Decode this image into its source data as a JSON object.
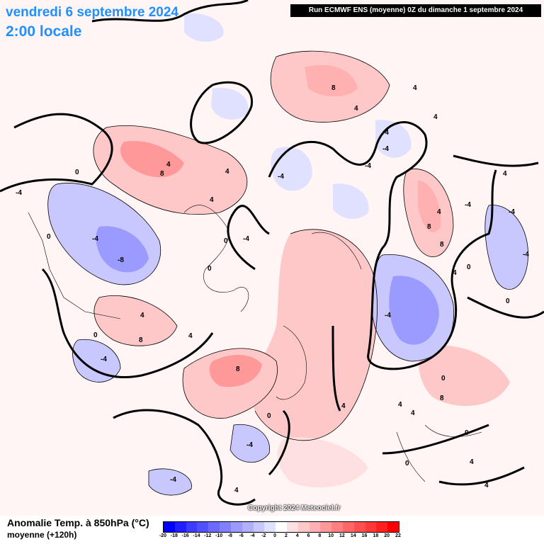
{
  "header": {
    "date": "vendredi 6 septembre 2024",
    "time": "2:00 locale",
    "run": "Run ECMWF ENS (moyenne) 0Z du dimanche 1 septembre 2024"
  },
  "footer": {
    "variable": "Anomalie Temp. à 850hPa (°C)",
    "subtitle": "moyenne   (+120h)",
    "copyright": "Copyright 2024 Meteociel.fr"
  },
  "legend": {
    "ticks": [
      "-20",
      "-18",
      "-16",
      "-14",
      "-12",
      "-10",
      "-8",
      "-6",
      "-4",
      "-2",
      "0",
      "2",
      "4",
      "6",
      "8",
      "10",
      "12",
      "14",
      "16",
      "18",
      "20",
      "22"
    ],
    "colors": [
      "#0000ff",
      "#2020ff",
      "#3c3cff",
      "#5050ff",
      "#6a6aff",
      "#8080ff",
      "#9a9aff",
      "#b0b0ff",
      "#c8c8ff",
      "#e0e0ff",
      "#ffffff",
      "#ffe0e0",
      "#ffc8c8",
      "#ffb0b0",
      "#ff9898",
      "#ff8080",
      "#ff6868",
      "#ff5050",
      "#ff3838",
      "#ff2020",
      "#ff0000"
    ]
  },
  "contour_labels": [
    "0",
    "-4",
    "4",
    "8",
    "-8"
  ],
  "colors": {
    "title": "#1e90ff",
    "warm": "#ffb0b0",
    "cold": "#b0b0ff"
  }
}
